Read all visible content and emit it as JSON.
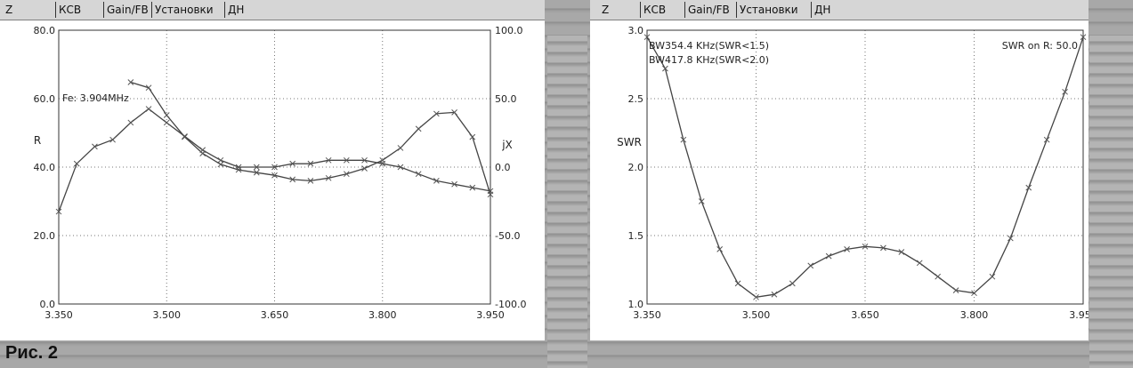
{
  "left_panel": {
    "tabs": [
      "Z",
      "КСВ",
      "Gain/FB",
      "Установки",
      "ДН"
    ]
  },
  "right_panel": {
    "tabs": [
      "Z",
      "КСВ",
      "Gain/FB",
      "Установки",
      "ДН"
    ]
  },
  "caption": "Рис. 2",
  "chart_data": [
    {
      "type": "line",
      "title": "",
      "xlabel": "",
      "ylabel": "R",
      "y2label": "jX",
      "annotation": "Fe: 3.904MHz",
      "xlim": [
        3.35,
        3.95
      ],
      "ylim": [
        0,
        80
      ],
      "y2lim": [
        -100,
        100
      ],
      "x_ticks": [
        "3.350",
        "3.500",
        "3.650",
        "3.800",
        "3.950"
      ],
      "y_ticks": [
        "0.0",
        "20.0",
        "40.0",
        "60.0",
        "80.0"
      ],
      "y2_ticks": [
        "-100.0",
        "-50.0",
        "0.0",
        "50.0",
        "100.0"
      ],
      "grid": true,
      "series": [
        {
          "axis": "left",
          "x": [
            3.35,
            3.375,
            3.4,
            3.425,
            3.45,
            3.475,
            3.5,
            3.525,
            3.55,
            3.575,
            3.6,
            3.625,
            3.65,
            3.675,
            3.7,
            3.725,
            3.75,
            3.775,
            3.8,
            3.825,
            3.85,
            3.875,
            3.9,
            3.925,
            3.95
          ],
          "values": [
            27,
            41,
            46,
            48,
            53,
            57,
            53,
            49,
            45,
            42,
            40,
            40,
            40,
            41,
            41,
            42,
            42,
            42,
            41,
            40,
            38,
            36,
            35,
            34,
            33
          ]
        },
        {
          "axis": "right",
          "x": [
            3.45,
            3.475,
            3.5,
            3.525,
            3.55,
            3.575,
            3.6,
            3.625,
            3.65,
            3.675,
            3.7,
            3.725,
            3.75,
            3.775,
            3.8,
            3.825,
            3.85,
            3.875,
            3.9,
            3.925,
            3.95
          ],
          "values": [
            62,
            58,
            38,
            22,
            10,
            2,
            -2,
            -4,
            -6,
            -9,
            -10,
            -8,
            -5,
            -1,
            5,
            14,
            28,
            39,
            40,
            22,
            -20
          ]
        }
      ]
    },
    {
      "type": "line",
      "title": "",
      "xlabel": "",
      "ylabel": "SWR",
      "annotations": [
        "BW354.4 KHz(SWR<1.5)",
        "BW417.8 KHz(SWR<2.0)",
        "SWR on R: 50.0"
      ],
      "xlim": [
        3.35,
        3.95
      ],
      "ylim": [
        1.0,
        3.0
      ],
      "x_ticks": [
        "3.350",
        "3.500",
        "3.650",
        "3.800",
        "3.950"
      ],
      "y_ticks": [
        "1.0",
        "1.5",
        "2.0",
        "2.5",
        "3.0"
      ],
      "grid": true,
      "series": [
        {
          "x": [
            3.35,
            3.375,
            3.4,
            3.425,
            3.45,
            3.475,
            3.5,
            3.525,
            3.55,
            3.575,
            3.6,
            3.625,
            3.65,
            3.675,
            3.7,
            3.725,
            3.75,
            3.775,
            3.8,
            3.825,
            3.85,
            3.875,
            3.9,
            3.925,
            3.95
          ],
          "values": [
            2.95,
            2.72,
            2.2,
            1.75,
            1.4,
            1.15,
            1.05,
            1.07,
            1.15,
            1.28,
            1.35,
            1.4,
            1.42,
            1.41,
            1.38,
            1.3,
            1.2,
            1.1,
            1.08,
            1.2,
            1.48,
            1.85,
            2.2,
            2.55,
            2.95
          ]
        }
      ]
    }
  ]
}
